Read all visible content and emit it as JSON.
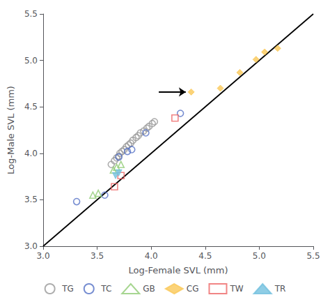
{
  "chart_data": {
    "type": "scatter",
    "xlabel": "Log-Female SVL (mm)",
    "ylabel": "Log-Male SVL (mm)",
    "xlim": [
      3,
      5.5
    ],
    "ylim": [
      3,
      5.5
    ],
    "xticks": [
      {
        "value": 3,
        "label": "3.0"
      },
      {
        "value": 3.5,
        "label": "3.5"
      },
      {
        "value": 4,
        "label": "4.0"
      },
      {
        "value": 4.5,
        "label": "4.5"
      },
      {
        "value": 5,
        "label": "5.0"
      },
      {
        "value": 5.5,
        "label": "5.5"
      }
    ],
    "yticks": [
      {
        "value": 3,
        "label": "3.0"
      },
      {
        "value": 3.5,
        "label": "3.5"
      },
      {
        "value": 4,
        "label": "4.0"
      },
      {
        "value": 4.5,
        "label": "4.5"
      },
      {
        "value": 5,
        "label": "5.0"
      },
      {
        "value": 5.5,
        "label": "5.5"
      }
    ],
    "grid": false,
    "legend": "bottom",
    "series": [
      {
        "type": "line",
        "line_style": "solid",
        "color": "#000000",
        "x": [
          3,
          5.5
        ],
        "y": [
          3,
          5.5
        ]
      },
      {
        "name": "TG",
        "marker": "circle-open",
        "color": "#999999",
        "x": [
          3.63,
          3.66,
          3.68,
          3.7,
          3.71,
          3.73,
          3.75,
          3.77,
          3.79,
          3.81,
          3.83,
          3.86,
          3.88,
          3.9,
          3.93,
          3.96,
          3.98,
          4.01,
          4.03
        ],
        "y": [
          3.88,
          3.92,
          3.95,
          3.97,
          4.0,
          4.02,
          4.04,
          4.07,
          4.09,
          4.11,
          4.14,
          4.17,
          4.19,
          4.22,
          4.24,
          4.27,
          4.29,
          4.32,
          4.34
        ]
      },
      {
        "name": "TC",
        "marker": "circle-open",
        "x": [
          3.31,
          3.57,
          3.7,
          3.78,
          3.82,
          3.95,
          4.27
        ],
        "y": [
          3.48,
          3.55,
          3.96,
          4.02,
          4.04,
          4.22,
          4.43
        ]
      },
      {
        "name": "GB",
        "marker": "triangle-open",
        "x": [
          3.46,
          3.51,
          3.65,
          3.68,
          3.72
        ],
        "y": [
          3.55,
          3.57,
          3.82,
          3.85,
          3.88
        ]
      },
      {
        "name": "CG",
        "marker": "diamond",
        "x": [
          4.37,
          4.64,
          4.82,
          4.97,
          5.05,
          5.17
        ],
        "y": [
          4.66,
          4.7,
          4.87,
          5.01,
          5.09,
          5.13
        ]
      },
      {
        "name": "TW",
        "marker": "square-open",
        "x": [
          3.66,
          3.72,
          4.22
        ],
        "y": [
          3.64,
          3.76,
          4.38
        ]
      },
      {
        "name": "TR",
        "marker": "triangle-down",
        "x": [
          3.67,
          3.7
        ],
        "y": [
          3.76,
          3.79
        ]
      }
    ],
    "annotations": [
      {
        "type": "arrow",
        "x": [
          4.07,
          4.32
        ],
        "y": [
          4.66,
          4.66
        ]
      }
    ]
  }
}
